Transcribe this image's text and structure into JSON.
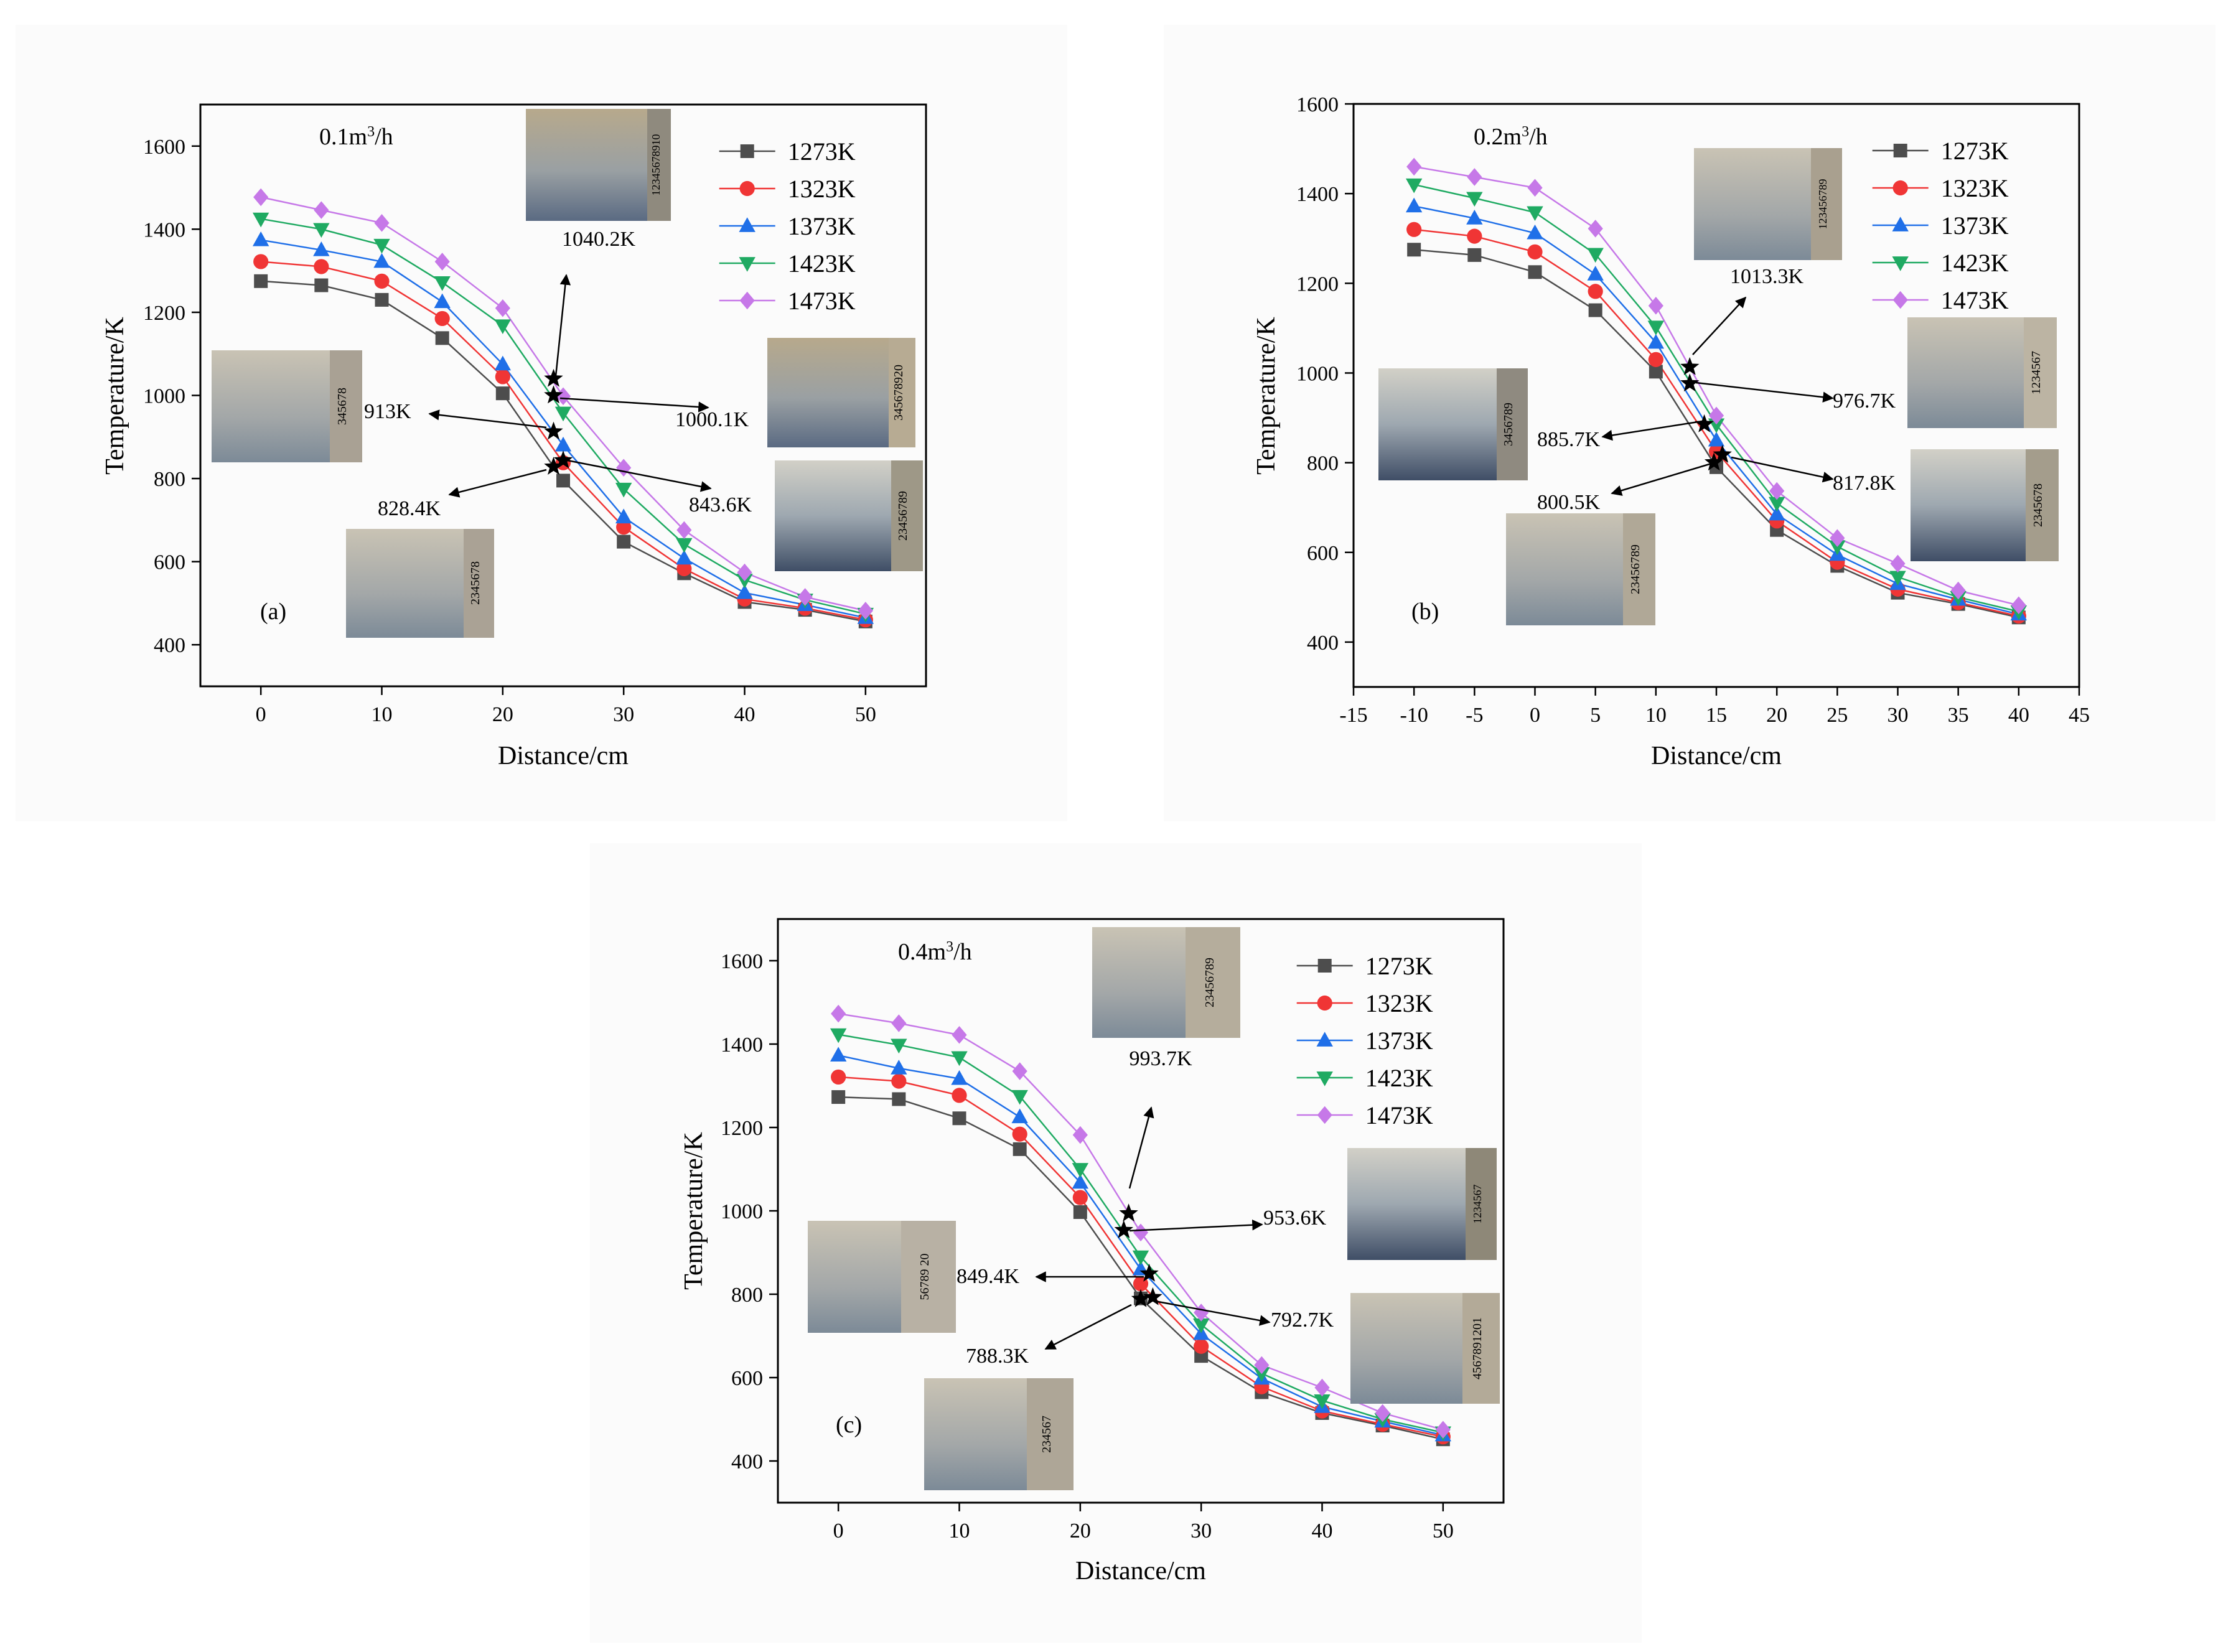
{
  "figure": {
    "series_names": [
      "1273K",
      "1323K",
      "1373K",
      "1423K",
      "1473K"
    ],
    "series_colors": [
      "#4d4d4d",
      "#f03535",
      "#1f6fe8",
      "#1faa62",
      "#c678e8"
    ],
    "marker_shapes": [
      "square",
      "circle",
      "triangle-up",
      "triangle-down",
      "diamond"
    ]
  },
  "chart_data": [
    {
      "type": "line",
      "id": "a",
      "panel_label": "(a)",
      "flow_rate_label": "0.1m",
      "flow_rate_sup": "3",
      "flow_rate_unit": "/h",
      "xlabel": "Distance/cm",
      "ylabel": "Temperature/K",
      "xlim": [
        -5,
        55
      ],
      "ylim": [
        300,
        1700
      ],
      "xticks": [
        0,
        10,
        20,
        30,
        40,
        50
      ],
      "yticks": [
        400,
        600,
        800,
        1000,
        1200,
        1400,
        1600
      ],
      "x": [
        0,
        5,
        10,
        15,
        20,
        25,
        30,
        35,
        40,
        45,
        50
      ],
      "series": [
        {
          "name": "1273K",
          "values": [
            1275,
            1265,
            1230,
            1138,
            1005,
            795,
            648,
            572,
            503,
            484,
            456
          ]
        },
        {
          "name": "1323K",
          "values": [
            1322,
            1310,
            1275,
            1185,
            1045,
            838,
            683,
            583,
            510,
            488,
            460
          ]
        },
        {
          "name": "1373K",
          "values": [
            1374,
            1350,
            1322,
            1225,
            1075,
            880,
            707,
            608,
            525,
            496,
            465
          ]
        },
        {
          "name": "1423K",
          "values": [
            1425,
            1400,
            1362,
            1272,
            1168,
            958,
            775,
            642,
            556,
            508,
            474
          ]
        },
        {
          "name": "1473K",
          "values": [
            1477,
            1446,
            1415,
            1322,
            1210,
            998,
            826,
            676,
            574,
            515,
            482
          ]
        }
      ],
      "stars": [
        {
          "x": 24.2,
          "y": 1040.2
        },
        {
          "x": 24.2,
          "y": 1000.1
        },
        {
          "x": 24.2,
          "y": 913
        },
        {
          "x": 24.2,
          "y": 828.4
        },
        {
          "x": 25.0,
          "y": 843.6
        }
      ],
      "annotations": [
        "1040.2K",
        "1000.1K",
        "913K",
        "828.4K",
        "843.6K"
      ],
      "photo_ruler_text": [
        "12345678910",
        "345678",
        "345678920",
        "2345678",
        "23456789"
      ]
    },
    {
      "type": "line",
      "id": "b",
      "panel_label": "(b)",
      "flow_rate_label": "0.2m",
      "flow_rate_sup": "3",
      "flow_rate_unit": "/h",
      "xlabel": "Distance/cm",
      "ylabel": "Temperature/K",
      "xlim": [
        -15,
        45
      ],
      "ylim": [
        300,
        1600
      ],
      "xticks": [
        -15,
        -10,
        -5,
        0,
        5,
        10,
        15,
        20,
        25,
        30,
        35,
        40,
        45
      ],
      "yticks": [
        400,
        600,
        800,
        1000,
        1200,
        1400,
        1600
      ],
      "x": [
        -10,
        -5,
        0,
        5,
        10,
        15,
        20,
        25,
        30,
        35,
        40
      ],
      "series": [
        {
          "name": "1273K",
          "values": [
            1275,
            1263,
            1225,
            1140,
            1003,
            790,
            650,
            570,
            510,
            485,
            455
          ]
        },
        {
          "name": "1323K",
          "values": [
            1320,
            1305,
            1270,
            1182,
            1030,
            825,
            670,
            578,
            518,
            488,
            458
          ]
        },
        {
          "name": "1373K",
          "values": [
            1372,
            1345,
            1312,
            1220,
            1068,
            850,
            685,
            595,
            530,
            495,
            462
          ]
        },
        {
          "name": "1423K",
          "values": [
            1420,
            1390,
            1358,
            1265,
            1103,
            885,
            710,
            613,
            545,
            500,
            468
          ]
        },
        {
          "name": "1473K",
          "values": [
            1460,
            1437,
            1413,
            1322,
            1150,
            905,
            737,
            632,
            575,
            515,
            482
          ]
        }
      ],
      "stars": [
        {
          "x": 12.8,
          "y": 1013.3
        },
        {
          "x": 12.8,
          "y": 976.7
        },
        {
          "x": 14.0,
          "y": 885.7
        },
        {
          "x": 14.8,
          "y": 800.5
        },
        {
          "x": 15.5,
          "y": 817.8
        }
      ],
      "annotations": [
        "1013.3K",
        "976.7K",
        "885.7K",
        "800.5K",
        "817.8K"
      ],
      "photo_ruler_text": [
        "123456789",
        "1234567",
        "3456789",
        "23456789",
        "2345678"
      ]
    },
    {
      "type": "line",
      "id": "c",
      "panel_label": "(c)",
      "flow_rate_label": "0.4m",
      "flow_rate_sup": "3",
      "flow_rate_unit": "/h",
      "xlabel": "Distance/cm",
      "ylabel": "Temperature/K",
      "xlim": [
        -5,
        55
      ],
      "ylim": [
        300,
        1700
      ],
      "xticks": [
        0,
        10,
        20,
        30,
        40,
        50
      ],
      "yticks": [
        400,
        600,
        800,
        1000,
        1200,
        1400,
        1600
      ],
      "x": [
        0,
        5,
        10,
        15,
        20,
        25,
        30,
        35,
        40,
        45,
        50
      ],
      "series": [
        {
          "name": "1273K",
          "values": [
            1273,
            1268,
            1222,
            1148,
            997,
            790,
            652,
            565,
            515,
            485,
            452
          ]
        },
        {
          "name": "1323K",
          "values": [
            1321,
            1311,
            1277,
            1184,
            1032,
            825,
            675,
            578,
            520,
            488,
            458
          ]
        },
        {
          "name": "1373K",
          "values": [
            1373,
            1342,
            1317,
            1225,
            1068,
            860,
            705,
            598,
            530,
            495,
            462
          ]
        },
        {
          "name": "1423K",
          "values": [
            1423,
            1398,
            1368,
            1275,
            1100,
            890,
            727,
            610,
            545,
            500,
            468
          ]
        },
        {
          "name": "1473K",
          "values": [
            1473,
            1450,
            1422,
            1335,
            1182,
            948,
            756,
            630,
            576,
            515,
            475
          ]
        }
      ],
      "stars": [
        {
          "x": 24.0,
          "y": 993.7
        },
        {
          "x": 23.6,
          "y": 953.6
        },
        {
          "x": 25.7,
          "y": 849.4
        },
        {
          "x": 25.0,
          "y": 788.3
        },
        {
          "x": 26.0,
          "y": 792.7
        }
      ],
      "annotations": [
        "993.7K",
        "953.6K",
        "849.4K",
        "788.3K",
        "792.7K"
      ],
      "photo_ruler_text": [
        "23456789",
        "56789 20",
        "234567",
        "4567891201",
        "1234567"
      ]
    }
  ]
}
